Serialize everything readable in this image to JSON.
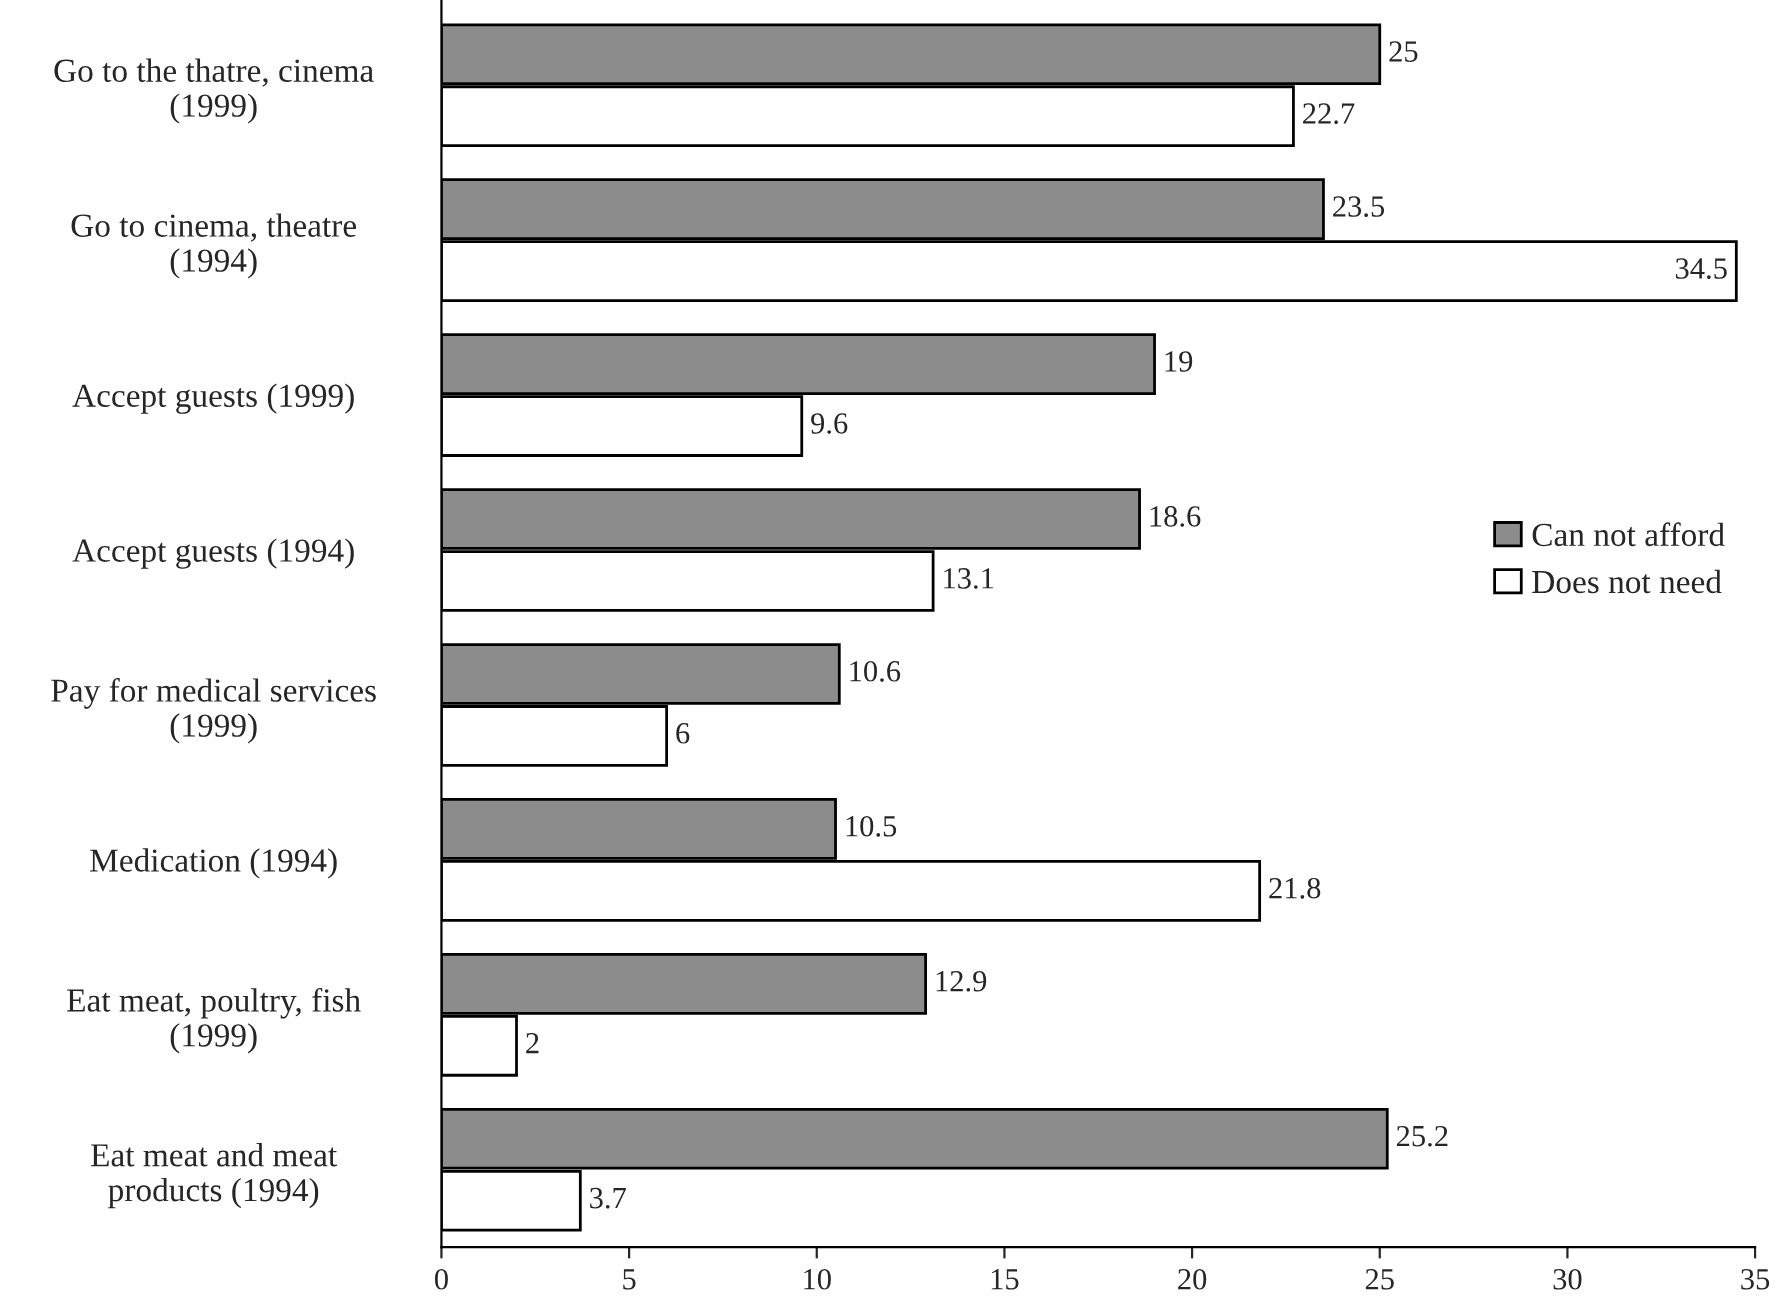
{
  "chart_data": {
    "type": "bar",
    "orientation": "horizontal",
    "categories": [
      "Go to the thatre, cinema\n(1999)",
      "Go to cinema, theatre\n(1994)",
      "Accept guests (1999)",
      "Accept guests (1994)",
      "Pay for medical services\n(1999)",
      "Medication (1994)",
      "Eat meat, poultry, fish\n(1999)",
      "Eat meat and meat\nproducts (1994)"
    ],
    "series": [
      {
        "name": "Can not afford",
        "color": "#8c8c8c",
        "values": [
          25,
          23.5,
          19,
          18.6,
          10.6,
          10.5,
          12.9,
          25.2
        ]
      },
      {
        "name": "Does not need",
        "color": "#ffffff",
        "values": [
          22.7,
          34.5,
          9.6,
          13.1,
          6,
          21.8,
          2,
          3.7
        ]
      }
    ],
    "xlim": [
      0,
      35
    ],
    "xticks": [
      0,
      5,
      10,
      15,
      20,
      25,
      30,
      35
    ],
    "data_labels": true,
    "legend": "right",
    "grid": false
  }
}
